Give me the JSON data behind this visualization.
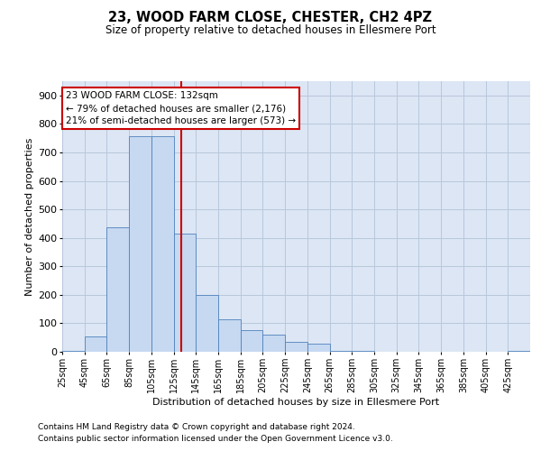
{
  "title": "23, WOOD FARM CLOSE, CHESTER, CH2 4PZ",
  "subtitle": "Size of property relative to detached houses in Ellesmere Port",
  "xlabel": "Distribution of detached houses by size in Ellesmere Port",
  "ylabel": "Number of detached properties",
  "footnote1": "Contains HM Land Registry data © Crown copyright and database right 2024.",
  "footnote2": "Contains public sector information licensed under the Open Government Licence v3.0.",
  "annotation_line1": "23 WOOD FARM CLOSE: 132sqm",
  "annotation_line2": "← 79% of detached houses are smaller (2,176)",
  "annotation_line3": "21% of semi-detached houses are larger (573) →",
  "vline_x": 132,
  "bins_left": [
    25,
    45,
    65,
    85,
    105,
    125,
    145,
    165,
    185,
    205,
    225,
    245,
    265,
    285,
    305,
    325,
    345,
    365,
    385,
    405,
    425
  ],
  "bar_heights": [
    2,
    55,
    438,
    757,
    757,
    415,
    200,
    115,
    75,
    60,
    35,
    30,
    3,
    3,
    0,
    0,
    0,
    0,
    0,
    0,
    2
  ],
  "bin_width": 20,
  "bar_color": "#c6d9f1",
  "bar_edge_color": "#4f81bd",
  "vline_color": "#cc0000",
  "annotation_box_edge": "#cc0000",
  "ylim_max": 950,
  "yticks": [
    0,
    100,
    200,
    300,
    400,
    500,
    600,
    700,
    800,
    900
  ],
  "grid_color": "#b8c8dc",
  "bg_color": "#dce6f4"
}
